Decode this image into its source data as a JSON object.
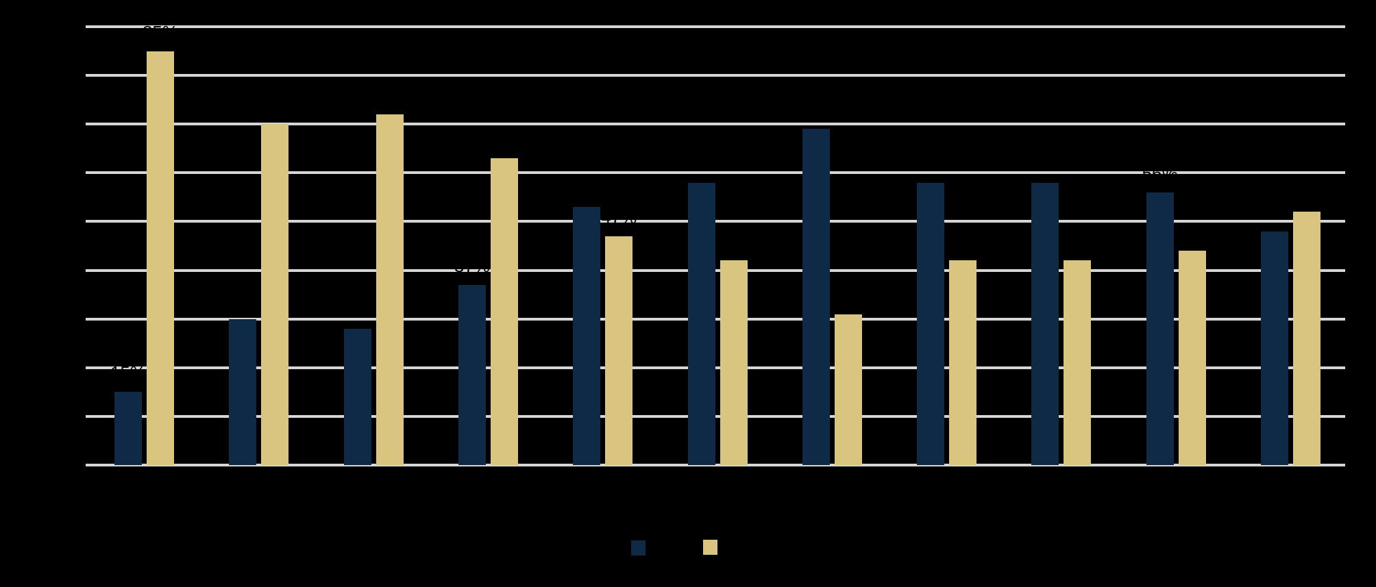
{
  "chart_data": {
    "type": "bar",
    "title": "",
    "categories": [
      "",
      "",
      "",
      "",
      "",
      "",
      "",
      "",
      "",
      "",
      ""
    ],
    "series": [
      {
        "name": "",
        "color": "#0F2A47",
        "values": [
          15,
          30,
          28,
          37,
          53,
          58,
          69,
          58,
          58,
          56,
          48
        ]
      },
      {
        "name": "",
        "color": "#D9C57F",
        "values": [
          85,
          70,
          72,
          63,
          47,
          42,
          31,
          42,
          42,
          44,
          52
        ]
      }
    ],
    "value_suffix": "%",
    "data_labels": {
      "visible": true,
      "color": "#000000"
    },
    "xlabel": "",
    "ylabel": "",
    "ylim": [
      0,
      90
    ],
    "ytick_interval": 10,
    "grid": true,
    "gridline_color": "#D6D6D6",
    "background_color": "#000000",
    "legend_position": "bottom-center"
  }
}
